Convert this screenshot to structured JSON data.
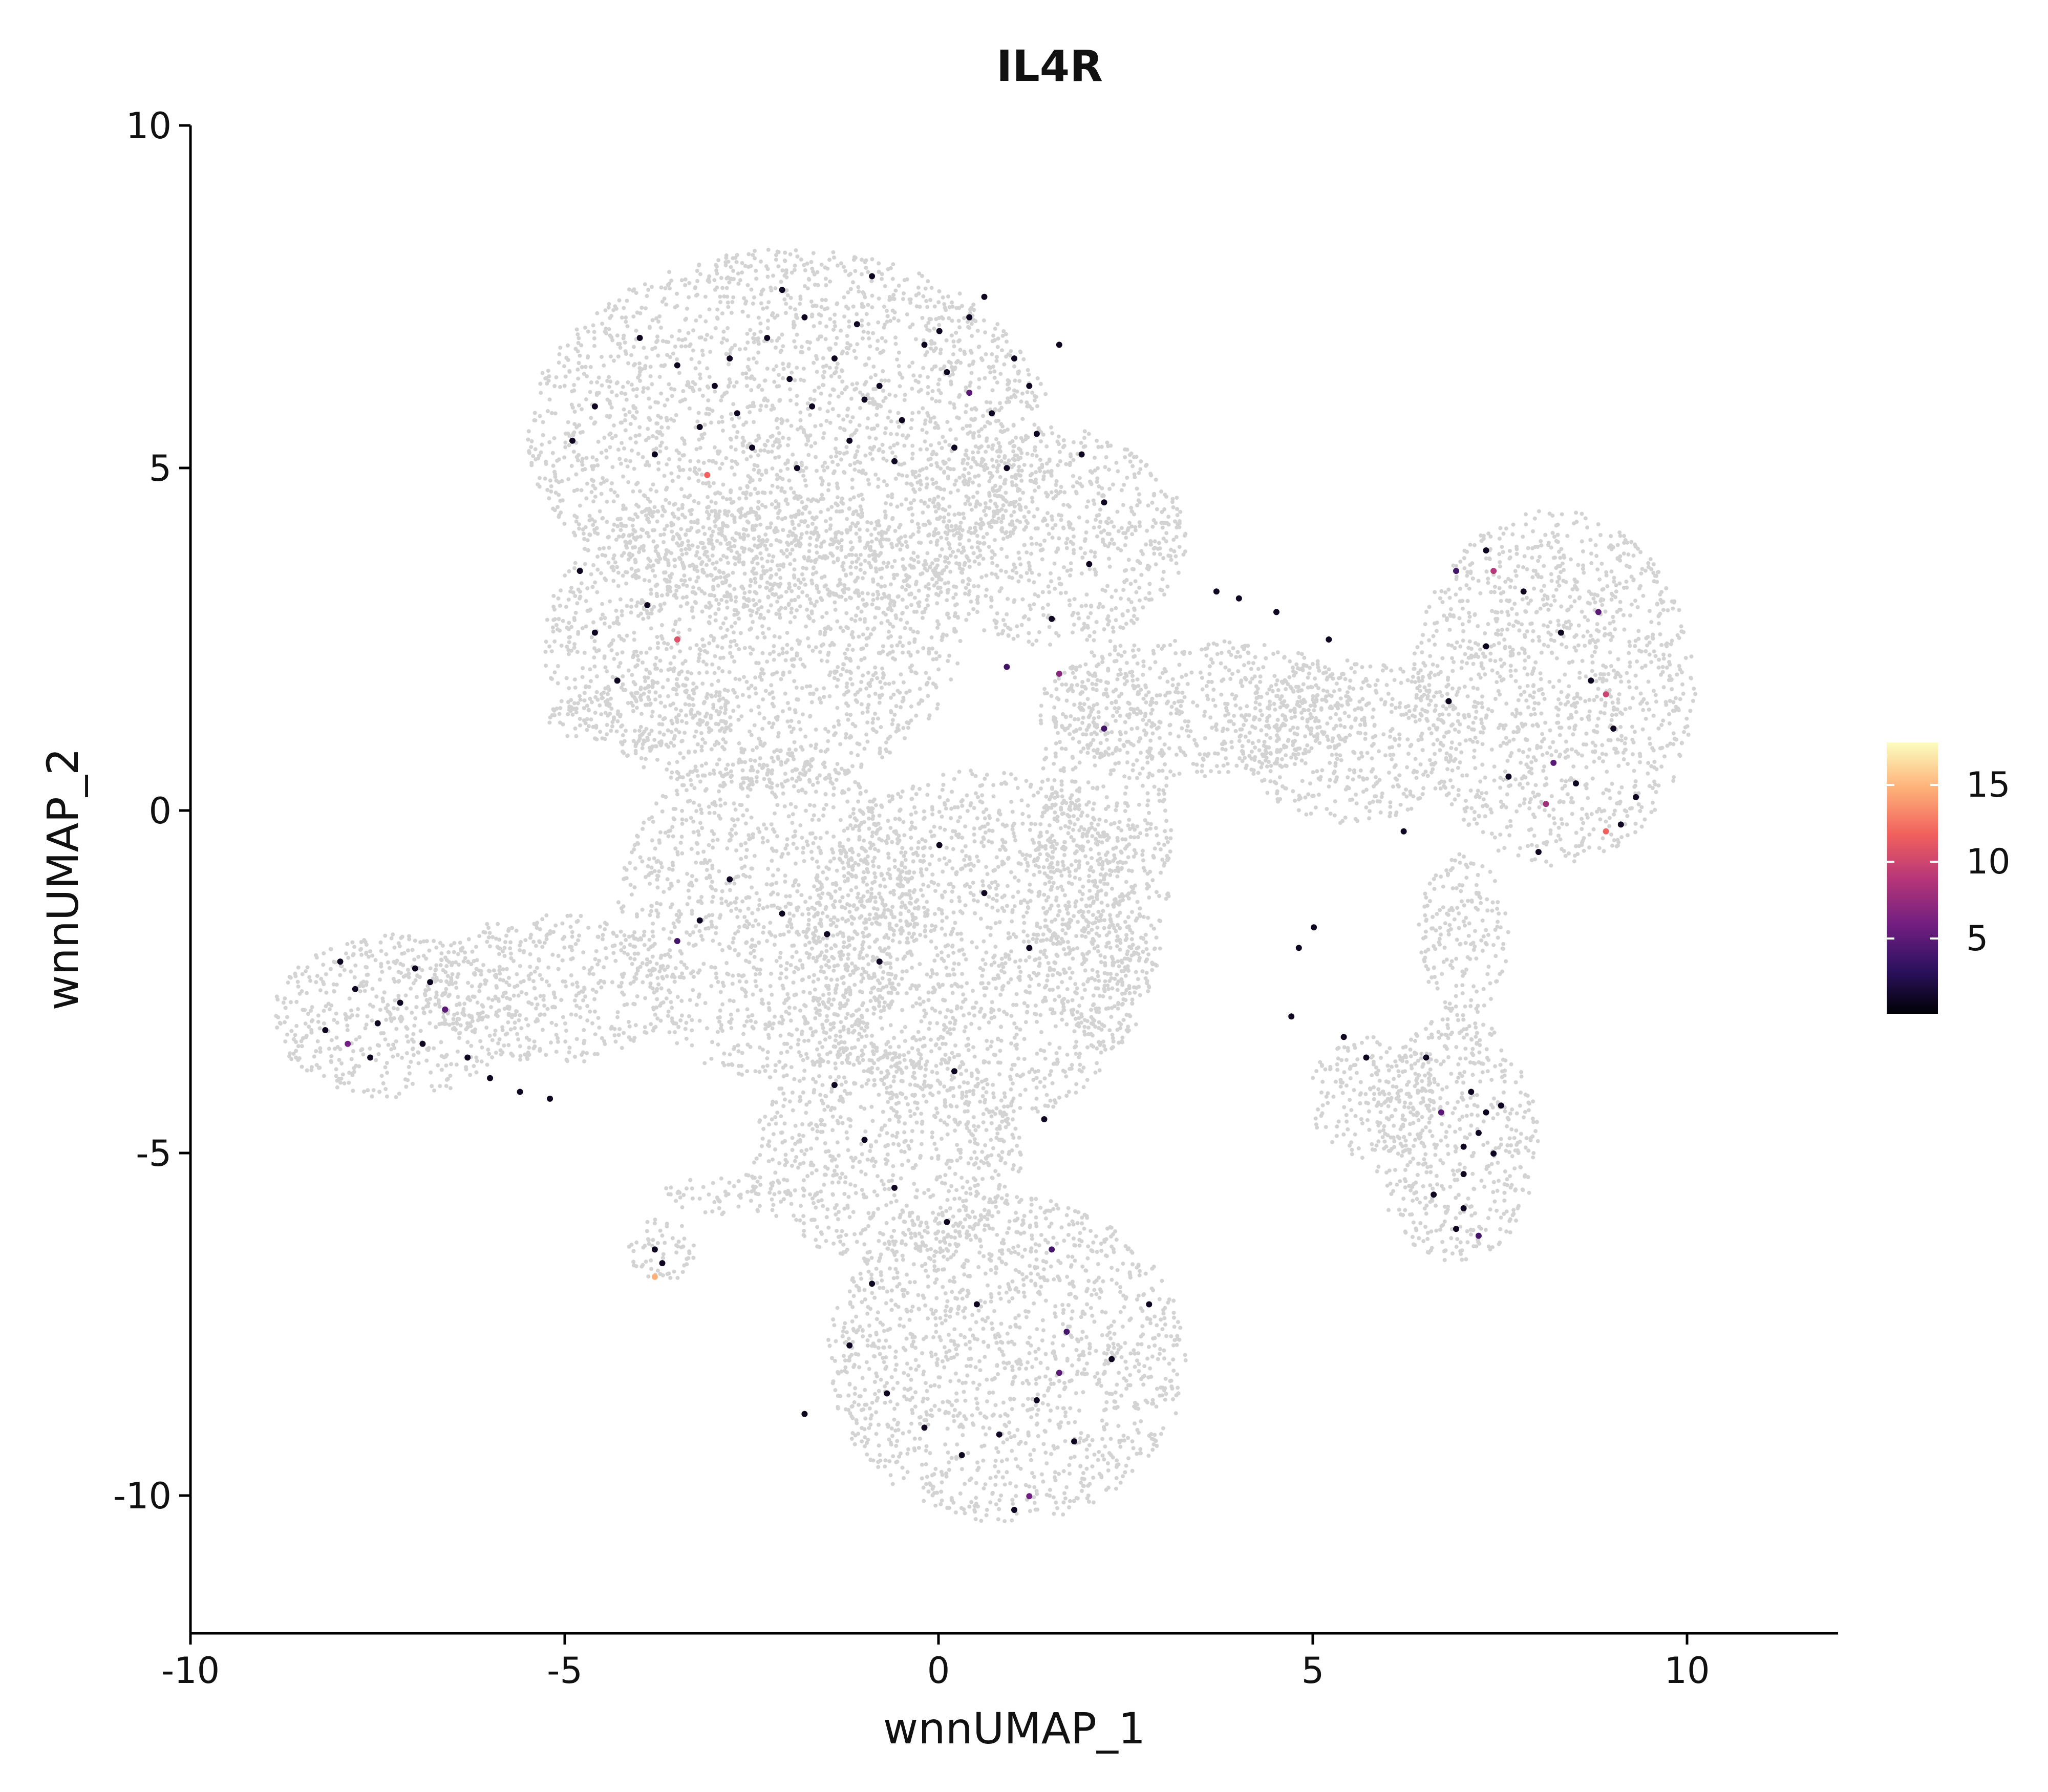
{
  "chart_data": {
    "type": "scatter",
    "title": "IL4R",
    "xlabel": "wnnUMAP_1",
    "ylabel": "wnnUMAP_2",
    "xlim": [
      -10,
      12
    ],
    "ylim": [
      -12,
      10
    ],
    "x_ticks": [
      "-10",
      "-5",
      "0",
      "5",
      "10"
    ],
    "y_ticks": [
      "10",
      "5",
      "0",
      "-5",
      "-10"
    ],
    "grid": false,
    "legend": {
      "placement": "right",
      "type": "colorbar",
      "range": [
        0,
        18
      ],
      "ticks": [
        "15",
        "10",
        "5"
      ],
      "colormap": [
        "#000004",
        "#2c115f",
        "#721f81",
        "#b73779",
        "#f1605d",
        "#feb078",
        "#fcfdbf"
      ]
    },
    "background_color": "#d3d3d3",
    "background_regions": [
      {
        "shape": "ellipse",
        "cx": -2.0,
        "cy": 5.5,
        "rx": 3.5,
        "ry": 2.7
      },
      {
        "shape": "ellipse",
        "cx": -2.5,
        "cy": 2.5,
        "rx": 2.8,
        "ry": 2.2
      },
      {
        "shape": "ellipse",
        "cx": 1.5,
        "cy": 4.0,
        "rx": 1.8,
        "ry": 1.6
      },
      {
        "shape": "ellipse",
        "cx": -4.0,
        "cy": 1.4,
        "rx": 1.3,
        "ry": 0.5
      },
      {
        "shape": "ellipse",
        "cx": -7.3,
        "cy": -3.0,
        "rx": 1.6,
        "ry": 1.2
      },
      {
        "shape": "ellipse",
        "cx": -5.2,
        "cy": -2.6,
        "rx": 1.7,
        "ry": 1.1
      },
      {
        "shape": "ellipse",
        "cx": -2.3,
        "cy": -1.5,
        "rx": 2.0,
        "ry": 2.4
      },
      {
        "shape": "ellipse",
        "cx": 0.5,
        "cy": -2.0,
        "rx": 2.3,
        "ry": 2.6
      },
      {
        "shape": "ellipse",
        "cx": -0.7,
        "cy": -5.0,
        "rx": 1.8,
        "ry": 1.6
      },
      {
        "shape": "ellipse",
        "cx": 0.9,
        "cy": -8.0,
        "rx": 2.4,
        "ry": 2.4
      },
      {
        "shape": "ellipse",
        "cx": 2.2,
        "cy": -0.5,
        "rx": 0.9,
        "ry": 3.0
      },
      {
        "shape": "ellipse",
        "cx": 3.5,
        "cy": 1.5,
        "rx": 2.2,
        "ry": 1.0
      },
      {
        "shape": "ellipse",
        "cx": 5.5,
        "cy": 1.0,
        "rx": 1.5,
        "ry": 1.2
      },
      {
        "shape": "ellipse",
        "cx": 8.2,
        "cy": 1.8,
        "rx": 1.9,
        "ry": 2.6
      },
      {
        "shape": "ellipse",
        "cx": 6.9,
        "cy": -4.8,
        "rx": 1.1,
        "ry": 1.8
      },
      {
        "shape": "ellipse",
        "cx": 5.8,
        "cy": -4.2,
        "rx": 0.9,
        "ry": 0.9
      },
      {
        "shape": "ellipse",
        "cx": 7.0,
        "cy": -1.8,
        "rx": 0.6,
        "ry": 1.2
      },
      {
        "shape": "ellipse",
        "cx": -3.7,
        "cy": -6.4,
        "rx": 0.45,
        "ry": 0.5
      },
      {
        "shape": "ellipse",
        "cx": -2.8,
        "cy": -5.6,
        "rx": 0.9,
        "ry": 0.3
      }
    ],
    "points": [
      {
        "x": -3.5,
        "y": 6.5,
        "value": 1
      },
      {
        "x": -3.0,
        "y": 6.2,
        "value": 1
      },
      {
        "x": -2.7,
        "y": 5.8,
        "value": 1
      },
      {
        "x": -2.3,
        "y": 6.9,
        "value": 1
      },
      {
        "x": -2.0,
        "y": 6.3,
        "value": 1
      },
      {
        "x": -1.7,
        "y": 5.9,
        "value": 1
      },
      {
        "x": -1.4,
        "y": 6.6,
        "value": 1
      },
      {
        "x": -1.1,
        "y": 7.1,
        "value": 1
      },
      {
        "x": -0.8,
        "y": 6.2,
        "value": 1
      },
      {
        "x": -0.5,
        "y": 5.7,
        "value": 1
      },
      {
        "x": -0.2,
        "y": 6.8,
        "value": 1
      },
      {
        "x": 0.1,
        "y": 6.4,
        "value": 1
      },
      {
        "x": 0.4,
        "y": 7.2,
        "value": 1
      },
      {
        "x": 0.7,
        "y": 5.8,
        "value": 1
      },
      {
        "x": 1.0,
        "y": 6.6,
        "value": 1
      },
      {
        "x": 1.3,
        "y": 5.5,
        "value": 1
      },
      {
        "x": 1.6,
        "y": 6.8,
        "value": 1
      },
      {
        "x": -4.0,
        "y": 6.9,
        "value": 1
      },
      {
        "x": -4.6,
        "y": 5.9,
        "value": 1
      },
      {
        "x": -4.9,
        "y": 5.4,
        "value": 1
      },
      {
        "x": -3.8,
        "y": 5.2,
        "value": 1
      },
      {
        "x": -3.2,
        "y": 5.6,
        "value": 1
      },
      {
        "x": -2.5,
        "y": 5.3,
        "value": 1
      },
      {
        "x": -1.9,
        "y": 5.0,
        "value": 1
      },
      {
        "x": -1.2,
        "y": 5.4,
        "value": 1
      },
      {
        "x": -0.6,
        "y": 5.1,
        "value": 1
      },
      {
        "x": 0.2,
        "y": 5.3,
        "value": 1
      },
      {
        "x": 0.9,
        "y": 5.0,
        "value": 1
      },
      {
        "x": 1.9,
        "y": 5.2,
        "value": 1
      },
      {
        "x": 2.2,
        "y": 4.5,
        "value": 1
      },
      {
        "x": 2.0,
        "y": 3.6,
        "value": 1
      },
      {
        "x": 1.5,
        "y": 2.8,
        "value": 1
      },
      {
        "x": -4.8,
        "y": 3.5,
        "value": 1
      },
      {
        "x": -4.6,
        "y": 2.6,
        "value": 1
      },
      {
        "x": -4.3,
        "y": 1.9,
        "value": 1
      },
      {
        "x": -3.9,
        "y": 3.0,
        "value": 1
      },
      {
        "x": -2.8,
        "y": 6.6,
        "value": 1
      },
      {
        "x": -2.1,
        "y": 7.6,
        "value": 1
      },
      {
        "x": -0.9,
        "y": 7.8,
        "value": 1
      },
      {
        "x": 0.6,
        "y": 7.5,
        "value": 1
      },
      {
        "x": -3.1,
        "y": 4.9,
        "value": 12
      },
      {
        "x": -3.5,
        "y": 2.5,
        "value": 11
      },
      {
        "x": 0.4,
        "y": 6.1,
        "value": 5
      },
      {
        "x": 1.6,
        "y": 2.0,
        "value": 7
      },
      {
        "x": 0.9,
        "y": 2.1,
        "value": 4
      },
      {
        "x": 2.2,
        "y": 1.2,
        "value": 4
      },
      {
        "x": -1.8,
        "y": 7.2,
        "value": 1
      },
      {
        "x": 0.0,
        "y": 7.0,
        "value": 1
      },
      {
        "x": -1.0,
        "y": 6.0,
        "value": 1
      },
      {
        "x": 1.2,
        "y": 6.2,
        "value": 1
      },
      {
        "x": -7.8,
        "y": -2.6,
        "value": 1
      },
      {
        "x": -7.5,
        "y": -3.1,
        "value": 1
      },
      {
        "x": -7.2,
        "y": -2.8,
        "value": 1
      },
      {
        "x": -6.9,
        "y": -3.4,
        "value": 1
      },
      {
        "x": -6.6,
        "y": -2.9,
        "value": 1
      },
      {
        "x": -6.3,
        "y": -3.6,
        "value": 1
      },
      {
        "x": -8.2,
        "y": -3.2,
        "value": 1
      },
      {
        "x": -8.0,
        "y": -2.2,
        "value": 1
      },
      {
        "x": -7.0,
        "y": -2.3,
        "value": 1
      },
      {
        "x": -6.0,
        "y": -3.9,
        "value": 1
      },
      {
        "x": -5.6,
        "y": -4.1,
        "value": 1
      },
      {
        "x": -5.2,
        "y": -4.2,
        "value": 1
      },
      {
        "x": -7.9,
        "y": -3.4,
        "value": 6
      },
      {
        "x": -6.6,
        "y": -2.9,
        "value": 5
      },
      {
        "x": -7.6,
        "y": -3.6,
        "value": 1
      },
      {
        "x": -6.8,
        "y": -2.5,
        "value": 1
      },
      {
        "x": -2.1,
        "y": -1.5,
        "value": 1
      },
      {
        "x": -1.5,
        "y": -1.8,
        "value": 1
      },
      {
        "x": -0.8,
        "y": -2.2,
        "value": 1
      },
      {
        "x": 0.0,
        "y": -0.5,
        "value": 1
      },
      {
        "x": 0.6,
        "y": -1.2,
        "value": 1
      },
      {
        "x": 1.2,
        "y": -2.0,
        "value": 1
      },
      {
        "x": -1.4,
        "y": -4.0,
        "value": 1
      },
      {
        "x": -1.0,
        "y": -4.8,
        "value": 1
      },
      {
        "x": -0.6,
        "y": -5.5,
        "value": 1
      },
      {
        "x": -2.8,
        "y": -1.0,
        "value": 1
      },
      {
        "x": -3.2,
        "y": -1.6,
        "value": 1
      },
      {
        "x": -3.5,
        "y": -1.9,
        "value": 4
      },
      {
        "x": 0.2,
        "y": -3.8,
        "value": 1
      },
      {
        "x": 1.4,
        "y": -4.5,
        "value": 1
      },
      {
        "x": -1.2,
        "y": -7.8,
        "value": 1
      },
      {
        "x": -0.7,
        "y": -8.5,
        "value": 1
      },
      {
        "x": -0.2,
        "y": -9.0,
        "value": 1
      },
      {
        "x": 0.3,
        "y": -9.4,
        "value": 1
      },
      {
        "x": 0.8,
        "y": -9.1,
        "value": 1
      },
      {
        "x": 1.3,
        "y": -8.6,
        "value": 1
      },
      {
        "x": 1.8,
        "y": -9.2,
        "value": 1
      },
      {
        "x": 2.3,
        "y": -8.0,
        "value": 1
      },
      {
        "x": 2.8,
        "y": -7.2,
        "value": 1
      },
      {
        "x": -1.8,
        "y": -8.8,
        "value": 1
      },
      {
        "x": 0.5,
        "y": -7.2,
        "value": 1
      },
      {
        "x": 1.0,
        "y": -10.2,
        "value": 1
      },
      {
        "x": 1.2,
        "y": -10.0,
        "value": 6
      },
      {
        "x": 1.6,
        "y": -8.2,
        "value": 5
      },
      {
        "x": 1.7,
        "y": -7.6,
        "value": 4
      },
      {
        "x": 1.5,
        "y": -6.4,
        "value": 4
      },
      {
        "x": -0.9,
        "y": -6.9,
        "value": 1
      },
      {
        "x": 0.1,
        "y": -6.0,
        "value": 1
      },
      {
        "x": -3.8,
        "y": -6.4,
        "value": 1
      },
      {
        "x": -3.7,
        "y": -6.6,
        "value": 1
      },
      {
        "x": -3.8,
        "y": -6.8,
        "value": 15
      },
      {
        "x": 7.3,
        "y": 3.8,
        "value": 1
      },
      {
        "x": 7.8,
        "y": 3.2,
        "value": 1
      },
      {
        "x": 8.3,
        "y": 2.6,
        "value": 1
      },
      {
        "x": 8.7,
        "y": 1.9,
        "value": 1
      },
      {
        "x": 9.0,
        "y": 1.2,
        "value": 1
      },
      {
        "x": 8.5,
        "y": 0.4,
        "value": 1
      },
      {
        "x": 9.1,
        "y": -0.2,
        "value": 1
      },
      {
        "x": 8.0,
        "y": -0.6,
        "value": 1
      },
      {
        "x": 7.6,
        "y": 0.5,
        "value": 1
      },
      {
        "x": 6.8,
        "y": 1.6,
        "value": 1
      },
      {
        "x": 7.3,
        "y": 2.4,
        "value": 1
      },
      {
        "x": 9.3,
        "y": 0.2,
        "value": 1
      },
      {
        "x": 7.4,
        "y": 3.5,
        "value": 9
      },
      {
        "x": 8.9,
        "y": 1.7,
        "value": 10
      },
      {
        "x": 8.1,
        "y": 0.1,
        "value": 8
      },
      {
        "x": 8.9,
        "y": -0.3,
        "value": 12
      },
      {
        "x": 8.2,
        "y": 0.7,
        "value": 5
      },
      {
        "x": 8.8,
        "y": 2.9,
        "value": 5
      },
      {
        "x": 6.9,
        "y": 3.5,
        "value": 4
      },
      {
        "x": 6.2,
        "y": -0.3,
        "value": 1
      },
      {
        "x": 7.1,
        "y": -4.1,
        "value": 1
      },
      {
        "x": 7.3,
        "y": -4.4,
        "value": 1
      },
      {
        "x": 7.2,
        "y": -4.7,
        "value": 1
      },
      {
        "x": 7.4,
        "y": -5.0,
        "value": 1
      },
      {
        "x": 7.0,
        "y": -5.3,
        "value": 1
      },
      {
        "x": 7.0,
        "y": -5.8,
        "value": 1
      },
      {
        "x": 6.9,
        "y": -6.1,
        "value": 1
      },
      {
        "x": 7.2,
        "y": -6.2,
        "value": 4
      },
      {
        "x": 6.6,
        "y": -5.6,
        "value": 1
      },
      {
        "x": 6.7,
        "y": -4.4,
        "value": 5
      },
      {
        "x": 7.5,
        "y": -4.3,
        "value": 1
      },
      {
        "x": 7.0,
        "y": -4.9,
        "value": 1
      },
      {
        "x": 6.5,
        "y": -3.6,
        "value": 1
      },
      {
        "x": 3.7,
        "y": 3.2,
        "value": 1
      },
      {
        "x": 4.0,
        "y": 3.1,
        "value": 1
      },
      {
        "x": 4.5,
        "y": 2.9,
        "value": 1
      },
      {
        "x": 5.2,
        "y": 2.5,
        "value": 1
      },
      {
        "x": 4.7,
        "y": -3.0,
        "value": 1
      },
      {
        "x": 4.8,
        "y": -2.0,
        "value": 1
      },
      {
        "x": 5.4,
        "y": -3.3,
        "value": 1
      },
      {
        "x": 5.7,
        "y": -3.6,
        "value": 1
      },
      {
        "x": 5.0,
        "y": -1.7,
        "value": 1
      }
    ]
  }
}
